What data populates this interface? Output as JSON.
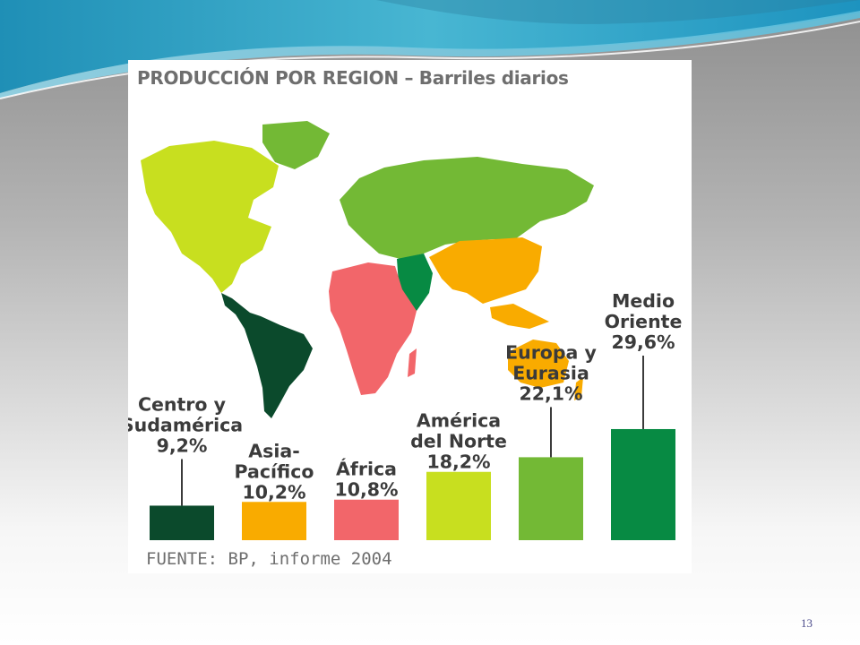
{
  "figure": {
    "title": "PRODUCCIÓN POR REGION – Barriles diarios",
    "source": "FUENTE: BP, informe 2004"
  },
  "slide": {
    "page_number": "13"
  },
  "colors": {
    "centro_sudamerica": "#0b4a2c",
    "asia_pacifico": "#f9ab00",
    "africa": "#f2666a",
    "america_norte": "#c8df1f",
    "europa_eurasia": "#73b935",
    "medio_oriente": "#078a43"
  },
  "chart_data": {
    "type": "bar",
    "title": "PRODUCCIÓN POR REGION – Barriles diarios",
    "categories": [
      "Centro y Sudamérica",
      "Asia-Pacífico",
      "África",
      "América del Norte",
      "Europa y Eurasia",
      "Medio Oriente"
    ],
    "values": [
      9.2,
      10.2,
      10.8,
      18.2,
      22.1,
      29.6
    ],
    "unit": "%",
    "labels": [
      [
        "Centro y",
        "Sudamérica",
        "9,2%"
      ],
      [
        "Asia-",
        "Pacífico",
        "10,2%"
      ],
      [
        "África",
        "10,8%"
      ],
      [
        "América",
        "del Norte",
        "18,2%"
      ],
      [
        "Europa y",
        "Eurasia",
        "22,1%"
      ],
      [
        "Medio",
        "Oriente",
        "29,6%"
      ]
    ],
    "colors": [
      "#0b4a2c",
      "#f9ab00",
      "#f2666a",
      "#c8df1f",
      "#73b935",
      "#078a43"
    ],
    "legend": "none",
    "grid": false
  }
}
